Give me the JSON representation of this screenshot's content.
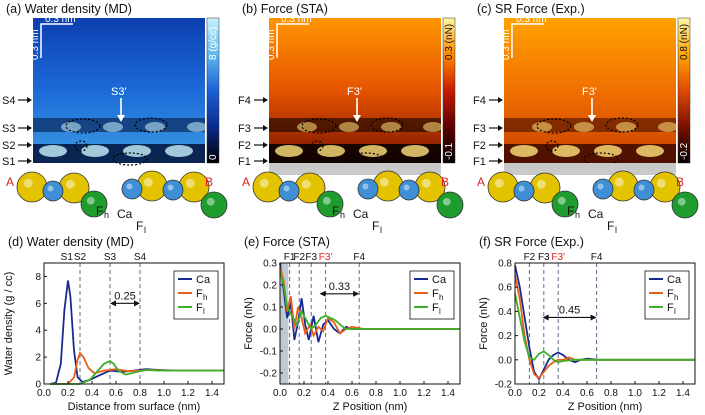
{
  "panels_top": [
    {
      "title": "(a) Water density (MD)",
      "scale_v": "0.3 nm",
      "scale_h": "0.3 nm",
      "cbar_max": "8 (g/cc)",
      "cbar_min": "0",
      "cbar_colors": [
        "#000000",
        "#0b2a8c",
        "#1e5fd8",
        "#5fb8ee",
        "#c8f2fb"
      ],
      "bg_colors": [
        "#0d3fb0",
        "#1b6ad6",
        "#3d9be4"
      ],
      "arrow_label": "S3'",
      "left_labels": [
        "S4",
        "S3",
        "S2",
        "S1"
      ],
      "atom_labels": [
        "A",
        "B",
        "F",
        "h",
        "Ca",
        "F",
        "l"
      ]
    },
    {
      "title": "(b) Force (STA)",
      "scale_v": "0.3 nm",
      "scale_h": "0.3 nm",
      "cbar_max": "0.3 (nN)",
      "cbar_min": "-0.1",
      "cbar_colors": [
        "#000000",
        "#5a0000",
        "#c81a00",
        "#ff8a00",
        "#fff7a0"
      ],
      "bg_colors": [
        "#ff9500",
        "#e65400",
        "#7a1200"
      ],
      "arrow_label": "F3'",
      "left_labels": [
        "F4",
        "F3",
        "F2",
        "F1"
      ],
      "atom_labels": [
        "A",
        "B",
        "F",
        "h",
        "Ca",
        "F",
        "l"
      ]
    },
    {
      "title": "(c) SR Force (Exp.)",
      "scale_v": "0.3 nm",
      "scale_h": "0.3 nm",
      "cbar_max": "0.8 (nN)",
      "cbar_min": "-0.2",
      "cbar_colors": [
        "#000000",
        "#7a0f00",
        "#e24a00",
        "#ffa500",
        "#fff5a8"
      ],
      "bg_colors": [
        "#ffa200",
        "#f07000",
        "#c84000"
      ],
      "arrow_label": "F3'",
      "left_labels": [
        "F4",
        "F3",
        "F2",
        "F1"
      ],
      "atom_labels": [
        "A",
        "B",
        "F",
        "h",
        "Ca",
        "F",
        "l"
      ]
    }
  ],
  "atom_colors": {
    "Ca": "#e3c300",
    "Fh": "#3f8fd6",
    "Fl": "#1e9c2e",
    "label_AB": "#e02020"
  },
  "chart_data": [
    {
      "type": "line",
      "title": "(d) Water density (MD)",
      "xlabel": "Distance from surface (nm)",
      "ylabel": "Water density (g / cc)",
      "xlim": [
        0,
        1.5
      ],
      "ylim": [
        0,
        9
      ],
      "xticks": [
        "0.0",
        "0.2",
        "0.4",
        "0.6",
        "0.8",
        "1.0",
        "1.2",
        "1.4"
      ],
      "yticks": [
        "0",
        "2",
        "4",
        "6",
        "8"
      ],
      "top_labels": [
        {
          "text": "S1",
          "x": 0.19
        },
        {
          "text": "S2",
          "x": 0.3
        },
        {
          "text": "S3",
          "x": 0.55
        },
        {
          "text": "S4",
          "x": 0.8
        }
      ],
      "dashed_x": [
        0.3,
        0.55,
        0.8
      ],
      "dim": {
        "x1": 0.55,
        "x2": 0.8,
        "y": 6.0,
        "label": "0.25"
      },
      "legend": [
        "Ca",
        "F",
        "F"
      ],
      "legend_subs": [
        "",
        "h",
        "l"
      ],
      "series": [
        {
          "name": "Ca",
          "color": "#1a2b8f",
          "x": [
            0.05,
            0.1,
            0.14,
            0.17,
            0.2,
            0.22,
            0.25,
            0.28,
            0.32,
            0.38,
            0.45,
            0.55,
            0.65,
            0.75,
            0.85,
            0.95,
            1.1,
            1.3,
            1.5
          ],
          "y": [
            0,
            0.1,
            1.5,
            5.5,
            7.7,
            6.5,
            2.5,
            0.5,
            0.15,
            0.3,
            0.6,
            1.0,
            0.9,
            1.0,
            1.1,
            1.05,
            1.0,
            1.0,
            1.0
          ]
        },
        {
          "name": "Fh",
          "color": "#e8601a",
          "x": [
            0.05,
            0.2,
            0.25,
            0.28,
            0.3,
            0.33,
            0.37,
            0.42,
            0.5,
            0.6,
            0.7,
            0.8,
            0.9,
            1.0,
            1.1,
            1.3,
            1.5
          ],
          "y": [
            0,
            0,
            0.5,
            1.8,
            2.3,
            2.0,
            1.2,
            0.8,
            1.0,
            1.1,
            0.95,
            1.0,
            1.05,
            1.0,
            1.0,
            1.0,
            1.0
          ]
        },
        {
          "name": "Fl",
          "color": "#3cb02a",
          "x": [
            0.05,
            0.3,
            0.38,
            0.45,
            0.5,
            0.55,
            0.58,
            0.62,
            0.68,
            0.75,
            0.85,
            0.95,
            1.1,
            1.3,
            1.5
          ],
          "y": [
            0,
            0,
            0.3,
            1.0,
            1.5,
            1.7,
            1.5,
            1.0,
            0.7,
            0.85,
            1.05,
            1.0,
            1.0,
            1.0,
            1.0
          ]
        }
      ]
    },
    {
      "type": "line",
      "title": "(e) Force (STA)",
      "xlabel": "Z Position (nm)",
      "ylabel": "Force (nN)",
      "xlim": [
        0,
        1.5
      ],
      "ylim": [
        -0.25,
        0.3
      ],
      "xticks": [
        "0.0",
        "0.2",
        "0.4",
        "0.6",
        "0.8",
        "1.0",
        "1.2",
        "1.4"
      ],
      "yticks": [
        "-0.2",
        "-0.1",
        "0.0",
        "0.1",
        "0.2",
        "0.3"
      ],
      "top_labels": [
        {
          "text": "F1",
          "x": 0.08
        },
        {
          "text": "F2",
          "x": 0.16
        },
        {
          "text": "F3",
          "x": 0.26
        },
        {
          "text": "F3'",
          "x": 0.38,
          "highlight": true
        },
        {
          "text": "F4",
          "x": 0.66
        }
      ],
      "dashed_x": [
        0.08,
        0.16,
        0.26,
        0.38,
        0.66
      ],
      "shade": [
        0,
        0.07
      ],
      "dim": {
        "x1": 0.33,
        "x2": 0.66,
        "y": 0.16,
        "label": "0.33"
      },
      "legend": [
        "Ca",
        "F",
        "F"
      ],
      "legend_subs": [
        "",
        "h",
        "l"
      ],
      "series": [
        {
          "name": "Ca",
          "color": "#1a2b8f",
          "x": [
            0.0,
            0.03,
            0.06,
            0.09,
            0.12,
            0.15,
            0.18,
            0.21,
            0.24,
            0.28,
            0.32,
            0.36,
            0.4,
            0.45,
            0.5,
            0.55,
            0.6,
            0.7,
            0.8,
            1.0,
            1.2,
            1.5
          ],
          "y": [
            0.3,
            0.18,
            0.05,
            0.12,
            -0.05,
            0.03,
            0.14,
            0.02,
            -0.05,
            0.06,
            -0.06,
            0.02,
            0.04,
            0.0,
            -0.02,
            0.01,
            0.0,
            0.0,
            0.0,
            0.0,
            0.0,
            0.0
          ]
        },
        {
          "name": "Fh",
          "color": "#e8601a",
          "x": [
            0.0,
            0.03,
            0.06,
            0.09,
            0.12,
            0.15,
            0.18,
            0.21,
            0.25,
            0.28,
            0.32,
            0.36,
            0.4,
            0.45,
            0.5,
            0.55,
            0.6,
            0.7,
            0.8,
            1.0,
            1.2,
            1.5
          ],
          "y": [
            0.28,
            0.22,
            0.08,
            0.15,
            0.0,
            0.1,
            0.05,
            -0.02,
            0.02,
            -0.03,
            0.01,
            -0.01,
            0.05,
            0.03,
            -0.02,
            0.0,
            0.01,
            0.0,
            0.0,
            0.0,
            0.0,
            0.0
          ]
        },
        {
          "name": "Fl",
          "color": "#3cb02a",
          "x": [
            0.0,
            0.03,
            0.06,
            0.1,
            0.14,
            0.18,
            0.22,
            0.26,
            0.3,
            0.34,
            0.38,
            0.42,
            0.46,
            0.5,
            0.55,
            0.6,
            0.7,
            0.8,
            1.0,
            1.2,
            1.5
          ],
          "y": [
            0.26,
            0.2,
            0.1,
            0.06,
            0.02,
            0.08,
            0.04,
            0.0,
            0.02,
            0.05,
            0.06,
            0.05,
            0.04,
            0.02,
            0.0,
            0.0,
            0.0,
            0.0,
            0.0,
            0.0,
            0.0
          ]
        }
      ]
    },
    {
      "type": "line",
      "title": "(f) SR Force (Exp.)",
      "xlabel": "Z Position (nm)",
      "ylabel": "Force (nN)",
      "xlim": [
        0,
        1.5
      ],
      "ylim": [
        -0.2,
        0.8
      ],
      "xticks": [
        "0.0",
        "0.2",
        "0.4",
        "0.6",
        "0.8",
        "1.0",
        "1.2",
        "1.4"
      ],
      "yticks": [
        "-0.2",
        "0.0",
        "0.2",
        "0.4",
        "0.6",
        "0.8"
      ],
      "top_labels": [
        {
          "text": "F2",
          "x": 0.12
        },
        {
          "text": "F3",
          "x": 0.24
        },
        {
          "text": "F3'",
          "x": 0.36,
          "highlight": true
        },
        {
          "text": "F4",
          "x": 0.68
        }
      ],
      "dashed_x": [
        0.12,
        0.24,
        0.36,
        0.68
      ],
      "dim": {
        "x1": 0.23,
        "x2": 0.68,
        "y": 0.35,
        "label": "0.45"
      },
      "legend": [
        "Ca",
        "F",
        "F"
      ],
      "legend_subs": [
        "",
        "h",
        "l"
      ],
      "series": [
        {
          "name": "Ca",
          "color": "#1a2b8f",
          "x": [
            0.0,
            0.04,
            0.08,
            0.12,
            0.16,
            0.2,
            0.24,
            0.28,
            0.32,
            0.36,
            0.4,
            0.45,
            0.5,
            0.55,
            0.6,
            0.7,
            0.8,
            1.0,
            1.2,
            1.5
          ],
          "y": [
            0.78,
            0.6,
            0.35,
            0.1,
            -0.1,
            -0.16,
            -0.08,
            0.0,
            0.04,
            0.06,
            0.04,
            0.0,
            -0.02,
            0.0,
            0.01,
            0.0,
            0.0,
            0.0,
            0.0,
            0.0
          ]
        },
        {
          "name": "Fh",
          "color": "#e8601a",
          "x": [
            0.0,
            0.04,
            0.08,
            0.12,
            0.16,
            0.2,
            0.24,
            0.28,
            0.32,
            0.36,
            0.4,
            0.45,
            0.5,
            0.6,
            0.7,
            0.8,
            1.0,
            1.2,
            1.5
          ],
          "y": [
            0.7,
            0.5,
            0.2,
            0.0,
            -0.12,
            -0.15,
            -0.1,
            -0.05,
            -0.02,
            0.0,
            0.0,
            0.02,
            0.0,
            0.0,
            0.0,
            0.0,
            0.0,
            0.0,
            0.0
          ]
        },
        {
          "name": "Fl",
          "color": "#3cb02a",
          "x": [
            0.0,
            0.04,
            0.08,
            0.12,
            0.16,
            0.2,
            0.24,
            0.28,
            0.32,
            0.36,
            0.4,
            0.5,
            0.6,
            0.7,
            0.8,
            1.0,
            1.2,
            1.5
          ],
          "y": [
            0.55,
            0.35,
            0.15,
            0.02,
            0.0,
            0.05,
            0.07,
            0.04,
            0.0,
            -0.02,
            -0.01,
            0.0,
            0.0,
            0.0,
            0.0,
            0.0,
            0.0,
            0.0
          ]
        }
      ]
    }
  ]
}
